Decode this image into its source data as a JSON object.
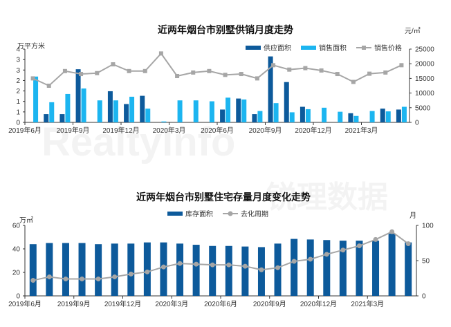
{
  "watermark": {
    "latin": "RealtyInfo",
    "cjk": "锐理数据"
  },
  "chart_data": [
    {
      "type": "bar",
      "title": "近两年烟台市别墅供销月度走势",
      "ylabel_left": "万平方米",
      "ylabel_right": "元/㎡",
      "ylim_left": [
        0,
        4
      ],
      "ylim_right": [
        0,
        25000
      ],
      "yticks_left": [
        "0",
        "1",
        "1",
        "2",
        "2",
        "3",
        "3",
        "4"
      ],
      "yticks_right": [
        "0",
        "5000",
        "10000",
        "15000",
        "20000",
        "25000"
      ],
      "xtick_labels": [
        "2019年6月",
        "2019年9月",
        "2019年12月",
        "2020年3月",
        "2020年6月",
        "2020年9月",
        "2020年12月",
        "2021年3月"
      ],
      "categories": [
        "2019-06",
        "2019-07",
        "2019-08",
        "2019-09",
        "2019-10",
        "2019-11",
        "2019-12",
        "2020-01",
        "2020-02",
        "2020-03",
        "2020-04",
        "2020-05",
        "2020-06",
        "2020-07",
        "2020-08",
        "2020-09",
        "2020-10",
        "2020-11",
        "2020-12",
        "2021-01",
        "2021-02",
        "2021-03",
        "2021-04",
        "2021-05"
      ],
      "legend_position": "top-right",
      "series": [
        {
          "name": "供应面积",
          "kind": "bar",
          "axis": "left",
          "color": "#0d5a9b",
          "values": [
            0,
            0.45,
            0.45,
            2.9,
            0,
            1.7,
            1.0,
            1.45,
            0,
            0,
            0,
            0,
            0.7,
            1.3,
            0.45,
            3.6,
            2.2,
            0.85,
            0,
            0,
            0.5,
            0,
            0.75,
            0.7
          ]
        },
        {
          "name": "销售面积",
          "kind": "bar",
          "axis": "left",
          "color": "#1cb5f0",
          "values": [
            2.5,
            1.1,
            1.55,
            1.85,
            1.2,
            1.2,
            1.4,
            0.75,
            0.05,
            1.2,
            1.2,
            1.15,
            1.35,
            1.25,
            0.62,
            1.05,
            0.55,
            0.72,
            0.8,
            0.58,
            0.35,
            0.62,
            0.6,
            0.85
          ]
        },
        {
          "name": "销售价格",
          "kind": "line",
          "axis": "right",
          "color": "#a6a6a6",
          "values": [
            15000,
            12500,
            17500,
            16500,
            16800,
            19800,
            17500,
            17500,
            23500,
            15800,
            17000,
            17500,
            16200,
            16500,
            15000,
            19500,
            18000,
            18500,
            17700,
            16500,
            13800,
            16600,
            17000,
            19500
          ]
        }
      ]
    },
    {
      "type": "bar",
      "title": "近两年烟台市别墅住宅存量月度变化走势",
      "ylabel_left": "万㎡",
      "ylabel_right": "月",
      "ylim_left": [
        0,
        60
      ],
      "ylim_right": [
        0,
        100
      ],
      "yticks_left": [
        "0",
        "20",
        "40",
        "60"
      ],
      "yticks_right": [
        "0",
        "50",
        "100"
      ],
      "xtick_labels": [
        "2019年6月",
        "2019年9月",
        "2019年12月",
        "2020年3月",
        "2020年6月",
        "2020年9月",
        "2020年12月",
        "2021年3月"
      ],
      "categories": [
        "2019-06",
        "2019-07",
        "2019-08",
        "2019-09",
        "2019-10",
        "2019-11",
        "2019-12",
        "2020-01",
        "2020-02",
        "2020-03",
        "2020-04",
        "2020-05",
        "2020-06",
        "2020-07",
        "2020-08",
        "2020-09",
        "2020-10",
        "2020-11",
        "2020-12",
        "2021-01",
        "2021-02",
        "2021-03",
        "2021-04",
        "2021-05"
      ],
      "legend_position": "top-center",
      "series": [
        {
          "name": "库存面积",
          "kind": "bar",
          "axis": "left",
          "color": "#0d5a9b",
          "values": [
            44,
            45,
            45,
            45,
            44,
            44.5,
            44.5,
            45.5,
            45.5,
            44.5,
            43.5,
            42.5,
            42.5,
            42,
            41.5,
            44.5,
            48.5,
            48,
            47.5,
            47,
            47,
            47,
            53,
            45.5
          ]
        },
        {
          "name": "去化周期",
          "kind": "line",
          "axis": "right",
          "color": "#a6a6a6",
          "values": [
            22,
            27,
            24,
            24,
            24,
            27,
            31,
            34,
            41,
            46,
            45,
            44,
            44,
            42,
            37,
            40,
            49,
            52,
            59,
            65,
            71,
            80,
            91,
            74
          ]
        }
      ]
    }
  ]
}
